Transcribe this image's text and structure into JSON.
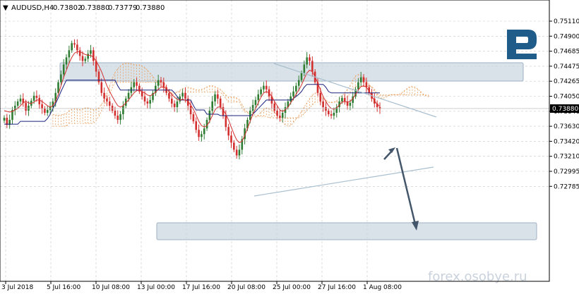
{
  "header": {
    "arrow": "▼",
    "symbol": "AUDUSD,H4",
    "open": "0.73802",
    "high": "0.73880",
    "low": "0.73779",
    "close": "0.73880"
  },
  "watermark": "forex.osobye.ru",
  "logo": {
    "name": "roboforex-logo",
    "color": "#1f5c8a"
  },
  "colors": {
    "bull": "#2e7d32",
    "bear": "#d32f2f",
    "tenkan": "#d32f2f",
    "kijun": "#1a237e",
    "cloud": "#e8a060",
    "grid": "#c8c8c8",
    "zone": "#9fb1c4",
    "arrow": "#44566a",
    "triangle": "#a9c0cf"
  },
  "chart_data": {
    "type": "candlestick",
    "y_ticks": [
      "0.75110",
      "0.74900",
      "0.74685",
      "0.74475",
      "0.74265",
      "0.74050",
      "0.73840",
      "0.73630",
      "0.73420",
      "0.73210",
      "0.72995",
      "0.72785"
    ],
    "current_price": "0.73880",
    "x_ticks": [
      "3 Jul 2018",
      "5 Jul 16:00",
      "10 Jul 08:00",
      "13 Jul 00:00",
      "17 Jul 16:00",
      "20 Jul 08:00",
      "25 Jul 00:00",
      "27 Jul 16:00",
      "1 Aug 08:00"
    ],
    "closes": [
      0.7375,
      0.7365,
      0.7372,
      0.7386,
      0.7392,
      0.7398,
      0.7402,
      0.7396,
      0.7385,
      0.7392,
      0.7399,
      0.7406,
      0.7403,
      0.7394,
      0.7388,
      0.7382,
      0.7386,
      0.739,
      0.7398,
      0.741,
      0.7425,
      0.7436,
      0.745,
      0.746,
      0.747,
      0.748,
      0.7478,
      0.747,
      0.7462,
      0.7455,
      0.7458,
      0.7465,
      0.747,
      0.7455,
      0.744,
      0.7425,
      0.741,
      0.7402,
      0.7398,
      0.7392,
      0.7385,
      0.7378,
      0.7372,
      0.738,
      0.7392,
      0.7402,
      0.741,
      0.7418,
      0.7425,
      0.742,
      0.7412,
      0.7405,
      0.7398,
      0.7395,
      0.74,
      0.741,
      0.742,
      0.7428,
      0.7425,
      0.7418,
      0.741,
      0.7402,
      0.7395,
      0.739,
      0.7398,
      0.7405,
      0.741,
      0.7402,
      0.7392,
      0.738,
      0.737,
      0.7358,
      0.7348,
      0.7352,
      0.736,
      0.7372,
      0.7385,
      0.7398,
      0.7408,
      0.7402,
      0.739,
      0.7378,
      0.7362,
      0.735,
      0.734,
      0.733,
      0.7322,
      0.733,
      0.7345,
      0.736,
      0.7372,
      0.7385,
      0.7393,
      0.74,
      0.7408,
      0.7415,
      0.742,
      0.7415,
      0.7405,
      0.7395,
      0.7385,
      0.7378,
      0.7375,
      0.7382,
      0.739,
      0.7398,
      0.7405,
      0.7412,
      0.742,
      0.7428,
      0.7438,
      0.745,
      0.746,
      0.7455,
      0.744,
      0.7425,
      0.741,
      0.7398,
      0.739,
      0.7385,
      0.738,
      0.7378,
      0.7382,
      0.739,
      0.7398,
      0.7403,
      0.7398,
      0.7392,
      0.7396,
      0.7405,
      0.7415,
      0.7425,
      0.7432,
      0.7425,
      0.7418,
      0.741,
      0.7402,
      0.7395,
      0.739,
      0.7388
    ],
    "ichimoku": {
      "tenkan": [
        0.7385,
        0.7384,
        0.7383,
        0.7384,
        0.7386,
        0.7388,
        0.7392,
        0.7396,
        0.7398,
        0.7396,
        0.7395,
        0.7397,
        0.74,
        0.74,
        0.7398,
        0.7395,
        0.7392,
        0.739,
        0.7392,
        0.7398,
        0.7408,
        0.742,
        0.7432,
        0.7442,
        0.7452,
        0.746,
        0.7466,
        0.7468,
        0.7468,
        0.7466,
        0.7464,
        0.7463,
        0.7463,
        0.746,
        0.7455,
        0.7448,
        0.744,
        0.743,
        0.742,
        0.7412,
        0.7405,
        0.7398,
        0.7392,
        0.739,
        0.7392,
        0.7396,
        0.74,
        0.7405,
        0.741,
        0.7413,
        0.7414,
        0.7412,
        0.741,
        0.7407,
        0.7406,
        0.7408,
        0.7411,
        0.7415,
        0.7418,
        0.7418,
        0.7416,
        0.7412,
        0.7408,
        0.7404,
        0.7401,
        0.74,
        0.7401,
        0.74,
        0.7398,
        0.7393,
        0.7387,
        0.7379,
        0.737,
        0.7364,
        0.7362,
        0.7364,
        0.737,
        0.7378,
        0.7386,
        0.739,
        0.739,
        0.7386,
        0.738,
        0.7372,
        0.7362,
        0.7352,
        0.7344,
        0.734,
        0.7342,
        0.735,
        0.736,
        0.737,
        0.738,
        0.7388,
        0.7396,
        0.7404,
        0.741,
        0.7412,
        0.741,
        0.7405,
        0.7398,
        0.7392,
        0.7386,
        0.7384,
        0.7386,
        0.739,
        0.7396,
        0.7402,
        0.7408,
        0.7414,
        0.7421,
        0.743,
        0.7438,
        0.7442,
        0.744,
        0.7433,
        0.7424,
        0.7414,
        0.7405,
        0.7398,
        0.7392,
        0.7388,
        0.7387,
        0.7389,
        0.7393,
        0.7397,
        0.7398,
        0.7397,
        0.7398,
        0.7402,
        0.7408,
        0.7414,
        0.7419,
        0.742,
        0.7418,
        0.7413,
        0.7406,
        0.7399,
        0.7394,
        0.7391
      ],
      "kijun": [
        0.7366,
        0.7366,
        0.7366,
        0.7366,
        0.7366,
        0.7366,
        0.737,
        0.737,
        0.737,
        0.737,
        0.737,
        0.737,
        0.737,
        0.737,
        0.737,
        0.737,
        0.7374,
        0.738,
        0.7388,
        0.7395,
        0.7403,
        0.7412,
        0.742,
        0.7428,
        0.7428,
        0.7428,
        0.7428,
        0.7428,
        0.7428,
        0.7428,
        0.7428,
        0.7428,
        0.7428,
        0.7428,
        0.7428,
        0.7428,
        0.7428,
        0.7428,
        0.7428,
        0.7428,
        0.7428,
        0.7428,
        0.742,
        0.7414,
        0.7414,
        0.7414,
        0.7414,
        0.7414,
        0.7414,
        0.7414,
        0.7414,
        0.7414,
        0.7414,
        0.7414,
        0.7414,
        0.7414,
        0.7414,
        0.7414,
        0.7414,
        0.7414,
        0.7414,
        0.7414,
        0.7414,
        0.741,
        0.7405,
        0.74,
        0.74,
        0.74,
        0.74,
        0.74,
        0.7392,
        0.7386,
        0.7386,
        0.7386,
        0.7386,
        0.738,
        0.738,
        0.738,
        0.738,
        0.738,
        0.7378,
        0.7378,
        0.7378,
        0.7378,
        0.7378,
        0.7378,
        0.7378,
        0.7378,
        0.7378,
        0.7378,
        0.7378,
        0.7378,
        0.738,
        0.7384,
        0.7388,
        0.7392,
        0.7396,
        0.74,
        0.74,
        0.74,
        0.74,
        0.74,
        0.74,
        0.74,
        0.74,
        0.74,
        0.74,
        0.7402,
        0.7405,
        0.7408,
        0.7412,
        0.7418,
        0.7422,
        0.7422,
        0.7422,
        0.7422,
        0.7422,
        0.7422,
        0.7422,
        0.7418,
        0.7412,
        0.741,
        0.741,
        0.741,
        0.741,
        0.741,
        0.741,
        0.741,
        0.741,
        0.741,
        0.741,
        0.741,
        0.741,
        0.741,
        0.741,
        0.741,
        0.741,
        0.741,
        0.741,
        0.741
      ]
    }
  }
}
